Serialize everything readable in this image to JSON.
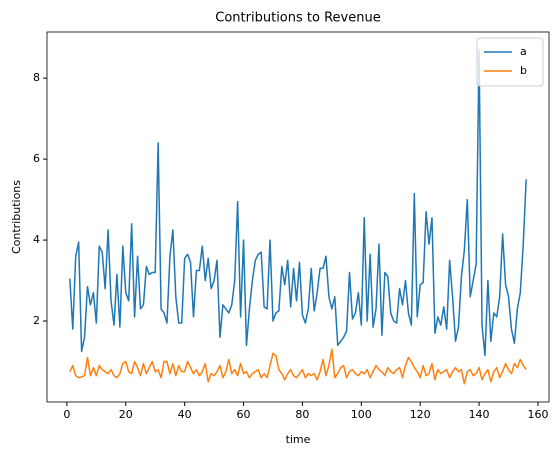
{
  "chart_data": {
    "type": "line",
    "title": "Contributions to Revenue",
    "xlabel": "time",
    "ylabel": "Contributions",
    "x": [
      1,
      2,
      3,
      4,
      5,
      6,
      7,
      8,
      9,
      10,
      11,
      12,
      13,
      14,
      15,
      16,
      17,
      18,
      19,
      20,
      21,
      22,
      23,
      24,
      25,
      26,
      27,
      28,
      29,
      30,
      31,
      32,
      33,
      34,
      35,
      36,
      37,
      38,
      39,
      40,
      41,
      42,
      43,
      44,
      45,
      46,
      47,
      48,
      49,
      50,
      51,
      52,
      53,
      54,
      55,
      56,
      57,
      58,
      59,
      60,
      61,
      62,
      63,
      64,
      65,
      66,
      67,
      68,
      69,
      70,
      71,
      72,
      73,
      74,
      75,
      76,
      77,
      78,
      79,
      80,
      81,
      82,
      83,
      84,
      85,
      86,
      87,
      88,
      89,
      90,
      91,
      92,
      93,
      94,
      95,
      96,
      97,
      98,
      99,
      100,
      101,
      102,
      103,
      104,
      105,
      106,
      107,
      108,
      109,
      110,
      111,
      112,
      113,
      114,
      115,
      116,
      117,
      118,
      119,
      120,
      121,
      122,
      123,
      124,
      125,
      126,
      127,
      128,
      129,
      130,
      131,
      132,
      133,
      134,
      135,
      136,
      137,
      138,
      139,
      140,
      141,
      142,
      143,
      144,
      145,
      146,
      147,
      148,
      149,
      150,
      151,
      152,
      153,
      154,
      155,
      156
    ],
    "series": [
      {
        "name": "a",
        "color": "#1f77b4",
        "values": [
          3.05,
          1.8,
          3.6,
          3.95,
          1.25,
          1.6,
          2.85,
          2.4,
          2.7,
          1.95,
          3.85,
          3.7,
          2.8,
          4.25,
          2.5,
          1.9,
          3.15,
          1.85,
          3.85,
          2.7,
          2.5,
          4.4,
          2.1,
          3.6,
          2.3,
          2.4,
          3.35,
          3.15,
          3.2,
          3.2,
          6.4,
          2.3,
          2.2,
          1.95,
          3.6,
          4.25,
          2.6,
          1.95,
          1.95,
          3.55,
          3.65,
          3.45,
          2.1,
          3.25,
          3.25,
          3.85,
          3.0,
          3.55,
          2.8,
          3.0,
          3.5,
          1.6,
          2.4,
          2.3,
          2.2,
          2.4,
          3.0,
          4.95,
          2.1,
          4.0,
          1.4,
          2.3,
          3.0,
          3.5,
          3.65,
          3.7,
          2.35,
          2.3,
          4.0,
          2.0,
          2.2,
          2.25,
          3.35,
          2.9,
          3.5,
          2.35,
          3.3,
          2.5,
          3.45,
          2.15,
          1.95,
          2.3,
          3.3,
          2.25,
          2.7,
          3.3,
          3.3,
          3.6,
          2.6,
          2.3,
          2.6,
          1.4,
          1.5,
          1.6,
          1.75,
          3.2,
          2.05,
          2.2,
          2.7,
          1.9,
          4.55,
          2.0,
          3.65,
          1.85,
          2.3,
          3.9,
          1.65,
          3.2,
          3.1,
          2.2,
          2.0,
          1.95,
          2.8,
          2.4,
          3.0,
          2.2,
          1.9,
          5.15,
          2.1,
          2.9,
          2.95,
          4.7,
          3.9,
          4.55,
          1.7,
          2.1,
          1.9,
          2.35,
          1.8,
          3.5,
          2.6,
          1.5,
          1.85,
          3.1,
          3.75,
          5.0,
          2.6,
          3.0,
          3.4,
          8.7,
          1.9,
          1.15,
          3.0,
          1.5,
          2.2,
          2.1,
          2.6,
          4.15,
          2.9,
          2.6,
          1.8,
          1.45,
          2.3,
          2.7,
          3.9,
          5.5
        ]
      },
      {
        "name": "b",
        "color": "#ff7f0e",
        "values": [
          0.75,
          0.9,
          0.65,
          0.6,
          0.62,
          0.65,
          1.1,
          0.65,
          0.85,
          0.65,
          0.9,
          0.8,
          0.75,
          0.7,
          0.8,
          0.65,
          0.6,
          0.7,
          0.95,
          1.0,
          0.75,
          0.7,
          1.0,
          0.85,
          0.65,
          0.95,
          0.7,
          0.85,
          1.0,
          0.75,
          0.8,
          0.6,
          1.0,
          1.0,
          0.7,
          0.95,
          0.65,
          0.9,
          0.75,
          0.75,
          1.0,
          0.85,
          0.7,
          0.8,
          0.65,
          0.75,
          0.95,
          0.5,
          0.7,
          0.65,
          0.75,
          0.9,
          0.6,
          0.75,
          1.05,
          0.7,
          0.8,
          0.65,
          0.95,
          0.7,
          0.75,
          0.6,
          0.7,
          0.75,
          0.8,
          0.6,
          0.7,
          0.6,
          0.9,
          1.2,
          1.15,
          0.8,
          0.7,
          0.55,
          0.7,
          0.8,
          0.65,
          0.6,
          0.7,
          0.8,
          0.6,
          0.7,
          0.65,
          0.7,
          0.55,
          0.75,
          1.05,
          0.65,
          0.9,
          1.3,
          0.6,
          0.7,
          0.85,
          0.9,
          0.6,
          0.75,
          0.8,
          0.7,
          0.65,
          0.75,
          0.7,
          0.8,
          0.6,
          0.75,
          0.9,
          0.8,
          0.75,
          0.65,
          0.85,
          0.75,
          0.7,
          0.8,
          0.85,
          0.6,
          0.9,
          1.1,
          1.0,
          0.85,
          0.75,
          0.6,
          0.9,
          0.65,
          0.7,
          0.95,
          0.55,
          0.8,
          0.7,
          0.75,
          0.8,
          0.6,
          0.75,
          0.85,
          0.75,
          0.8,
          0.45,
          0.75,
          0.8,
          0.65,
          0.7,
          0.85,
          0.55,
          0.7,
          0.8,
          0.5,
          0.75,
          0.85,
          0.6,
          0.75,
          0.95,
          0.8,
          0.7,
          0.95,
          0.85,
          1.05,
          0.9,
          0.8
        ]
      }
    ],
    "xlim": [
      -6.75,
      163.75
    ],
    "xticks": [
      0,
      20,
      40,
      60,
      80,
      100,
      120,
      140,
      160
    ],
    "ylim": [
      0.0,
      9.14
    ],
    "yticks": [
      2,
      4,
      6,
      8
    ],
    "grid": false,
    "legend": "upper right"
  }
}
